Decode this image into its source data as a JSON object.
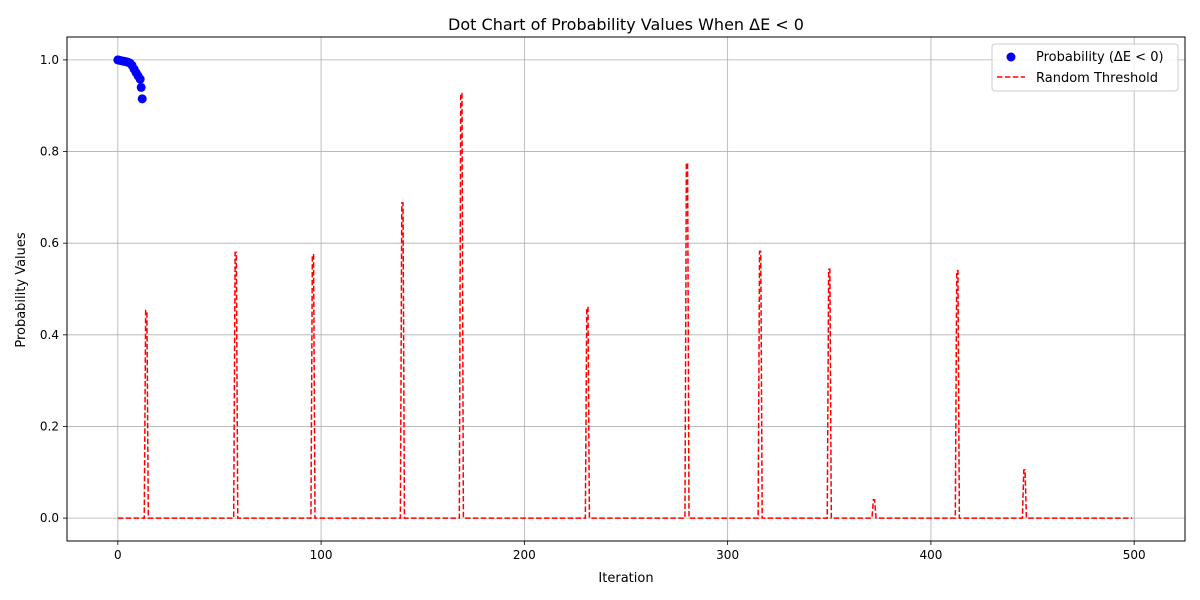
{
  "chart_data": {
    "type": "scatter+line",
    "title": "Dot Chart of Probability Values When ΔE < 0",
    "xlabel": "Iteration",
    "ylabel": "Probability Values",
    "xlim": [
      -25,
      525
    ],
    "ylim": [
      -0.05,
      1.05
    ],
    "xticks": [
      0,
      100,
      200,
      300,
      400,
      500
    ],
    "yticks": [
      0.0,
      0.2,
      0.4,
      0.6,
      0.8,
      1.0
    ],
    "xtick_labels": [
      "0",
      "100",
      "200",
      "300",
      "400",
      "500"
    ],
    "ytick_labels": [
      "0.0",
      "0.2",
      "0.4",
      "0.6",
      "0.8",
      "1.0"
    ],
    "grid": true,
    "legend_position": "top-right",
    "series": [
      {
        "name": "Probability (ΔE < 0)",
        "kind": "scatter",
        "color": "#0000ff",
        "points": [
          [
            0,
            1.0
          ],
          [
            1,
            0.999
          ],
          [
            2,
            0.998
          ],
          [
            3,
            0.997
          ],
          [
            4,
            0.996
          ],
          [
            5,
            0.995
          ],
          [
            6,
            0.993
          ],
          [
            7,
            0.988
          ],
          [
            8,
            0.98
          ],
          [
            9,
            0.972
          ],
          [
            10,
            0.965
          ],
          [
            11,
            0.958
          ],
          [
            11.5,
            0.94
          ],
          [
            12,
            0.915
          ]
        ]
      },
      {
        "name": "Random Threshold",
        "kind": "line",
        "style": "dashed",
        "color": "#ff0000",
        "x_end": 499,
        "baseline": 0.0,
        "spikes": [
          [
            14,
            0.453
          ],
          [
            58,
            0.58
          ],
          [
            96,
            0.575
          ],
          [
            140,
            0.688
          ],
          [
            169,
            0.927
          ],
          [
            231,
            0.46
          ],
          [
            280,
            0.775
          ],
          [
            316,
            0.582
          ],
          [
            350,
            0.543
          ],
          [
            372,
            0.04
          ],
          [
            413,
            0.54
          ],
          [
            446,
            0.105
          ]
        ]
      }
    ]
  }
}
